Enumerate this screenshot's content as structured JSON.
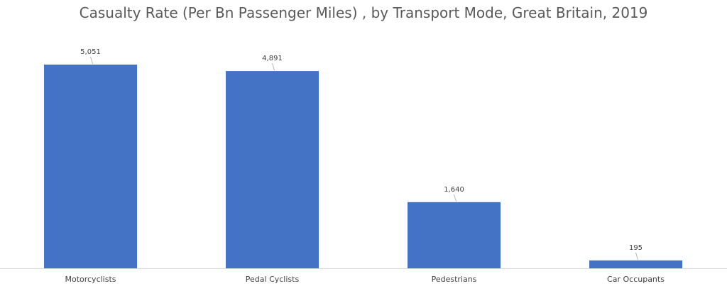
{
  "chart_data": {
    "type": "bar",
    "title": "Casualty Rate (Per Bn Passenger Miles) , by Transport Mode, Great Britain, 2019",
    "categories": [
      "Motorcyclists",
      "Pedal Cyclists",
      "Pedestrians",
      "Car Occupants"
    ],
    "values": [
      5051,
      4891,
      1640,
      195
    ],
    "data_labels": [
      "5,051",
      "4,891",
      "1,640",
      "195"
    ],
    "xlabel": "",
    "ylabel": "",
    "ylim": [
      0,
      5700
    ],
    "grid": false,
    "legend": "none",
    "bar_color": "#4472C4",
    "axis_color": "#D9D9D9",
    "leader_line_color": "#A6A6A6"
  }
}
